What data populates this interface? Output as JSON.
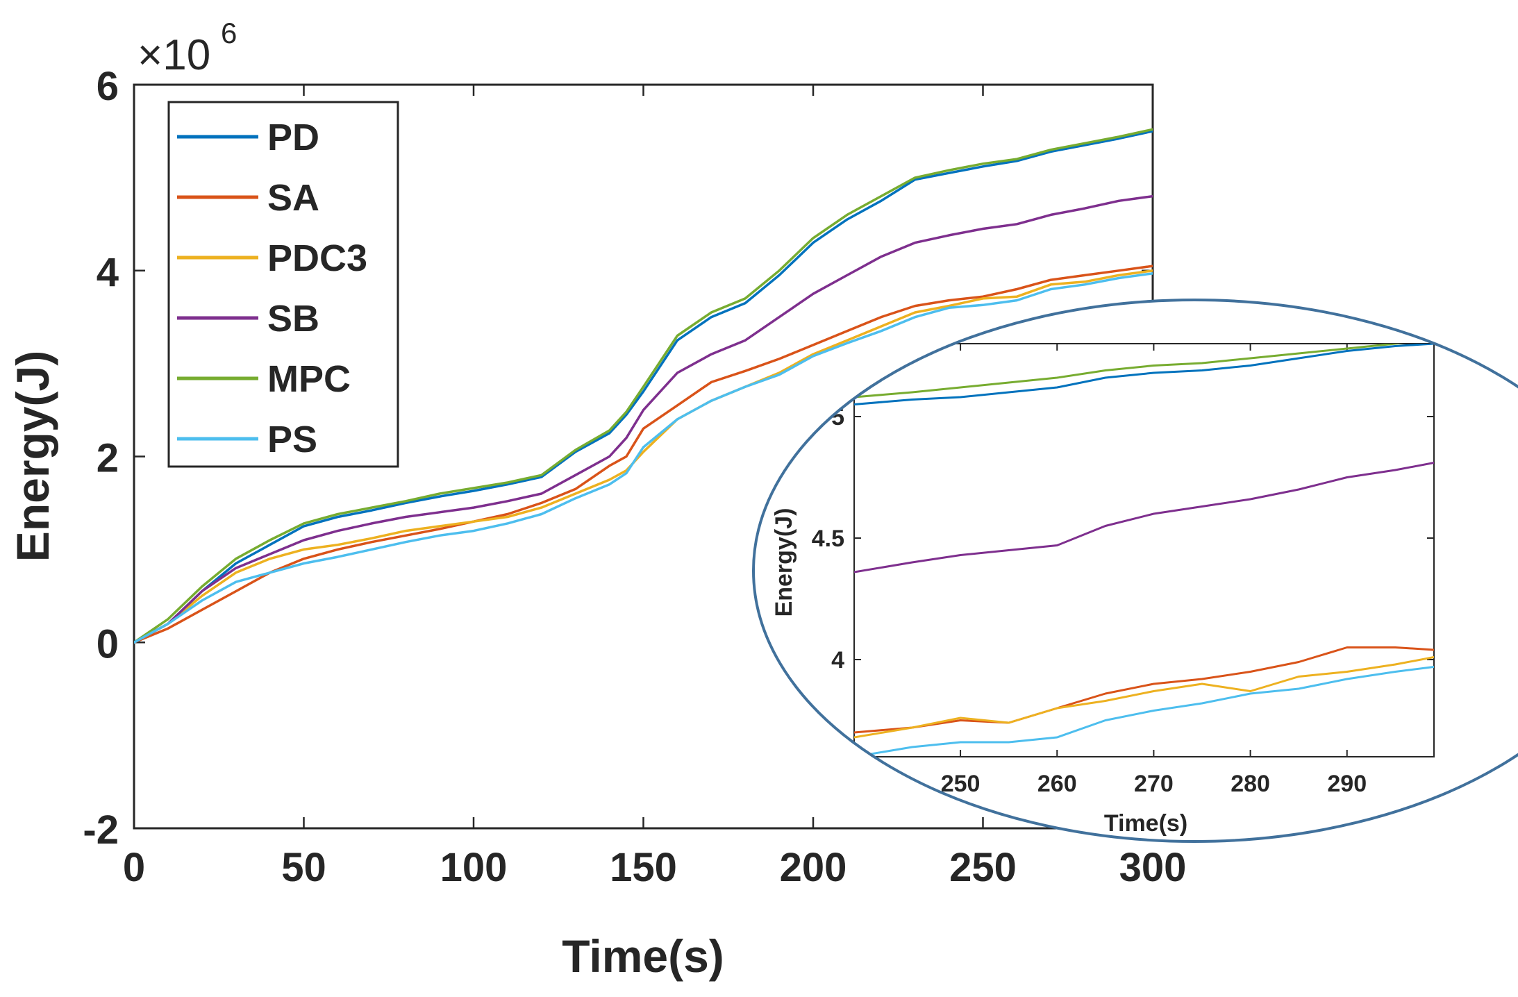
{
  "colors": {
    "PD": "#0072BD",
    "SA": "#D95319",
    "PDC3": "#EDB120",
    "SB": "#7E2F8E",
    "MPC": "#77AC30",
    "PS": "#4DBEEE",
    "axis": "#262626",
    "inset_border": "#41719C"
  },
  "chart_data": [
    {
      "type": "line",
      "title": "",
      "xlabel": "Time(s)",
      "ylabel": "Energy(J)",
      "exponent_label": "×10",
      "exponent_power": "6",
      "xlim": [
        0,
        300
      ],
      "ylim": [
        -2,
        6
      ],
      "xticks": [
        "0",
        "50",
        "100",
        "150",
        "200",
        "250",
        "300"
      ],
      "yticks": [
        "-2",
        "0",
        "2",
        "4",
        "6"
      ],
      "legend_position": "top-left",
      "grid": false,
      "series": [
        {
          "name": "PD",
          "color_key": "PD",
          "x": [
            0,
            10,
            20,
            30,
            40,
            50,
            60,
            70,
            80,
            90,
            100,
            110,
            120,
            130,
            140,
            145,
            150,
            160,
            170,
            180,
            190,
            200,
            210,
            220,
            230,
            240,
            250,
            260,
            270,
            280,
            290,
            300
          ],
          "y": [
            0,
            0.2,
            0.55,
            0.85,
            1.05,
            1.25,
            1.35,
            1.42,
            1.5,
            1.57,
            1.63,
            1.7,
            1.78,
            2.05,
            2.25,
            2.45,
            2.7,
            3.25,
            3.5,
            3.65,
            3.95,
            4.3,
            4.55,
            4.75,
            4.98,
            5.05,
            5.12,
            5.18,
            5.28,
            5.35,
            5.42,
            5.5
          ]
        },
        {
          "name": "SA",
          "color_key": "SA",
          "x": [
            0,
            10,
            20,
            30,
            40,
            50,
            60,
            70,
            80,
            90,
            100,
            110,
            120,
            130,
            140,
            145,
            150,
            160,
            170,
            180,
            190,
            200,
            210,
            220,
            230,
            240,
            250,
            260,
            270,
            280,
            290,
            300
          ],
          "y": [
            0,
            0.15,
            0.35,
            0.55,
            0.75,
            0.9,
            1.0,
            1.08,
            1.15,
            1.22,
            1.3,
            1.38,
            1.5,
            1.65,
            1.9,
            2.0,
            2.3,
            2.55,
            2.8,
            2.92,
            3.05,
            3.2,
            3.35,
            3.5,
            3.62,
            3.68,
            3.72,
            3.8,
            3.9,
            3.95,
            4.0,
            4.05
          ]
        },
        {
          "name": "PDC3",
          "color_key": "PDC3",
          "x": [
            0,
            10,
            20,
            30,
            40,
            50,
            60,
            70,
            80,
            90,
            100,
            110,
            120,
            130,
            140,
            145,
            150,
            160,
            170,
            180,
            190,
            200,
            210,
            220,
            230,
            240,
            250,
            260,
            270,
            280,
            290,
            300
          ],
          "y": [
            0,
            0.2,
            0.5,
            0.75,
            0.9,
            1.0,
            1.05,
            1.12,
            1.2,
            1.25,
            1.3,
            1.35,
            1.45,
            1.6,
            1.75,
            1.85,
            2.05,
            2.4,
            2.6,
            2.75,
            2.9,
            3.1,
            3.25,
            3.4,
            3.55,
            3.62,
            3.7,
            3.72,
            3.85,
            3.88,
            3.95,
            4.0
          ]
        },
        {
          "name": "SB",
          "color_key": "SB",
          "x": [
            0,
            10,
            20,
            30,
            40,
            50,
            60,
            70,
            80,
            90,
            100,
            110,
            120,
            130,
            140,
            145,
            150,
            160,
            170,
            180,
            190,
            200,
            210,
            220,
            230,
            240,
            250,
            260,
            270,
            280,
            290,
            300
          ],
          "y": [
            0,
            0.2,
            0.55,
            0.8,
            0.95,
            1.1,
            1.2,
            1.28,
            1.35,
            1.4,
            1.45,
            1.52,
            1.6,
            1.8,
            2.0,
            2.2,
            2.5,
            2.9,
            3.1,
            3.25,
            3.5,
            3.75,
            3.95,
            4.15,
            4.3,
            4.38,
            4.45,
            4.5,
            4.6,
            4.67,
            4.75,
            4.8
          ]
        },
        {
          "name": "MPC",
          "color_key": "MPC",
          "x": [
            0,
            10,
            20,
            30,
            40,
            50,
            60,
            70,
            80,
            90,
            100,
            110,
            120,
            130,
            140,
            145,
            150,
            160,
            170,
            180,
            190,
            200,
            210,
            220,
            230,
            240,
            250,
            260,
            270,
            280,
            290,
            300
          ],
          "y": [
            0,
            0.25,
            0.6,
            0.9,
            1.1,
            1.28,
            1.38,
            1.45,
            1.52,
            1.6,
            1.66,
            1.72,
            1.8,
            2.07,
            2.28,
            2.48,
            2.75,
            3.3,
            3.55,
            3.7,
            4.0,
            4.35,
            4.6,
            4.8,
            5.0,
            5.08,
            5.15,
            5.2,
            5.3,
            5.37,
            5.44,
            5.52
          ]
        },
        {
          "name": "PS",
          "color_key": "PS",
          "x": [
            0,
            10,
            20,
            30,
            40,
            50,
            60,
            70,
            80,
            90,
            100,
            110,
            120,
            130,
            140,
            145,
            150,
            160,
            170,
            180,
            190,
            200,
            210,
            220,
            230,
            240,
            250,
            260,
            270,
            280,
            290,
            300
          ],
          "y": [
            0,
            0.2,
            0.45,
            0.65,
            0.75,
            0.85,
            0.92,
            1.0,
            1.08,
            1.15,
            1.2,
            1.28,
            1.38,
            1.55,
            1.7,
            1.82,
            2.1,
            2.4,
            2.6,
            2.75,
            2.88,
            3.08,
            3.22,
            3.35,
            3.5,
            3.6,
            3.63,
            3.68,
            3.8,
            3.85,
            3.92,
            3.97
          ]
        }
      ]
    },
    {
      "type": "line",
      "title": "",
      "xlabel": "Time(s)",
      "ylabel": "Energy(J)",
      "xlim": [
        239,
        299
      ],
      "ylim": [
        3.6,
        5.3
      ],
      "xticks": [
        "250",
        "260",
        "270",
        "280",
        "290"
      ],
      "yticks": [
        "4",
        "4.5",
        "5"
      ],
      "grid": false,
      "series": [
        {
          "name": "PD",
          "color_key": "PD",
          "x": [
            239,
            245,
            250,
            255,
            260,
            265,
            270,
            275,
            280,
            285,
            290,
            295,
            299
          ],
          "y": [
            5.05,
            5.07,
            5.08,
            5.1,
            5.12,
            5.16,
            5.18,
            5.19,
            5.21,
            5.24,
            5.27,
            5.29,
            5.3
          ]
        },
        {
          "name": "SA",
          "color_key": "SA",
          "x": [
            239,
            245,
            250,
            255,
            260,
            265,
            270,
            275,
            280,
            285,
            290,
            295,
            299
          ],
          "y": [
            3.7,
            3.72,
            3.75,
            3.74,
            3.8,
            3.86,
            3.9,
            3.92,
            3.95,
            3.99,
            4.05,
            4.05,
            4.04
          ]
        },
        {
          "name": "PDC3",
          "color_key": "PDC3",
          "x": [
            239,
            245,
            250,
            255,
            260,
            265,
            270,
            275,
            280,
            285,
            290,
            295,
            299
          ],
          "y": [
            3.68,
            3.72,
            3.76,
            3.74,
            3.8,
            3.83,
            3.87,
            3.9,
            3.87,
            3.93,
            3.95,
            3.98,
            4.01
          ]
        },
        {
          "name": "SB",
          "color_key": "SB",
          "x": [
            239,
            245,
            250,
            255,
            260,
            265,
            270,
            275,
            280,
            285,
            290,
            295,
            299
          ],
          "y": [
            4.36,
            4.4,
            4.43,
            4.45,
            4.47,
            4.55,
            4.6,
            4.63,
            4.66,
            4.7,
            4.75,
            4.78,
            4.81
          ]
        },
        {
          "name": "MPC",
          "color_key": "MPC",
          "x": [
            239,
            245,
            250,
            255,
            260,
            265,
            270,
            275,
            280,
            285,
            290,
            295,
            299
          ],
          "y": [
            5.08,
            5.1,
            5.12,
            5.14,
            5.16,
            5.19,
            5.21,
            5.22,
            5.24,
            5.26,
            5.28,
            5.3,
            5.32
          ]
        },
        {
          "name": "PS",
          "color_key": "PS",
          "x": [
            239,
            245,
            250,
            255,
            260,
            265,
            270,
            275,
            280,
            285,
            290,
            295,
            299
          ],
          "y": [
            3.6,
            3.64,
            3.66,
            3.66,
            3.68,
            3.75,
            3.79,
            3.82,
            3.86,
            3.88,
            3.92,
            3.95,
            3.97
          ]
        }
      ]
    }
  ]
}
